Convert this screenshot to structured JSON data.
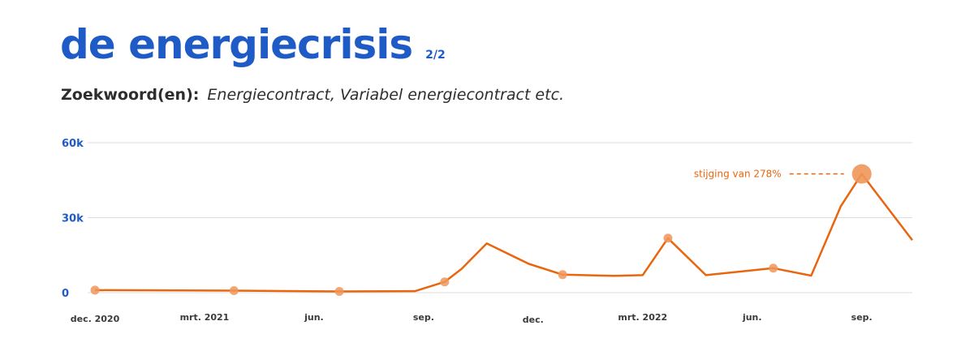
{
  "header": {
    "title": "de energiecrisis",
    "page_indicator": "2/2"
  },
  "subtitle": {
    "label": "Zoekwoord(en):",
    "value": "Energiecontract, Variabel energiecontract etc."
  },
  "colors": {
    "accent_blue": "#1f5bc6",
    "line_orange": "#e8660f",
    "marker_orange": "#f0965a",
    "grid": "#dddddd"
  },
  "chart_data": {
    "type": "line",
    "y_ticks": [
      {
        "value": 0,
        "label": "0"
      },
      {
        "value": 30000,
        "label": "30k"
      },
      {
        "value": 60000,
        "label": "60k"
      }
    ],
    "ylim": [
      0,
      60000
    ],
    "x_tick_labels": [
      "dec. 2020",
      "mrt. 2021",
      "jun.",
      "sep.",
      "dec.",
      "mrt. 2022",
      "jun.",
      "sep."
    ],
    "x_ticks": [
      0,
      13,
      26,
      39,
      52,
      65,
      78,
      91
    ],
    "xlim": [
      0,
      97
    ],
    "series": [
      {
        "values": [
          {
            "x": 0,
            "y": 1000
          },
          {
            "x": 16.5,
            "y": 800
          },
          {
            "x": 29,
            "y": 500
          },
          {
            "x": 38,
            "y": 600
          },
          {
            "x": 41.5,
            "y": 4300
          },
          {
            "x": 43.5,
            "y": 9500
          },
          {
            "x": 46.5,
            "y": 19700
          },
          {
            "x": 51.5,
            "y": 11500
          },
          {
            "x": 55.5,
            "y": 7200
          },
          {
            "x": 61.5,
            "y": 6700
          },
          {
            "x": 65,
            "y": 7000
          },
          {
            "x": 68,
            "y": 21800
          },
          {
            "x": 72.5,
            "y": 7000
          },
          {
            "x": 80.5,
            "y": 9800
          },
          {
            "x": 85,
            "y": 6800
          },
          {
            "x": 88.5,
            "y": 34500
          },
          {
            "x": 91,
            "y": 47500
          },
          {
            "x": 97,
            "y": 21000
          }
        ]
      }
    ],
    "markers": [
      {
        "x": 0,
        "y": 1000
      },
      {
        "x": 16.5,
        "y": 800
      },
      {
        "x": 29,
        "y": 500
      },
      {
        "x": 41.5,
        "y": 4300
      },
      {
        "x": 55.5,
        "y": 7200
      },
      {
        "x": 68,
        "y": 21800
      },
      {
        "x": 80.5,
        "y": 9800
      },
      {
        "x": 91,
        "y": 47500,
        "highlight": true
      }
    ],
    "annotation": {
      "text": "stijging van 278%",
      "x": 91,
      "y": 47500
    },
    "grid": true
  }
}
